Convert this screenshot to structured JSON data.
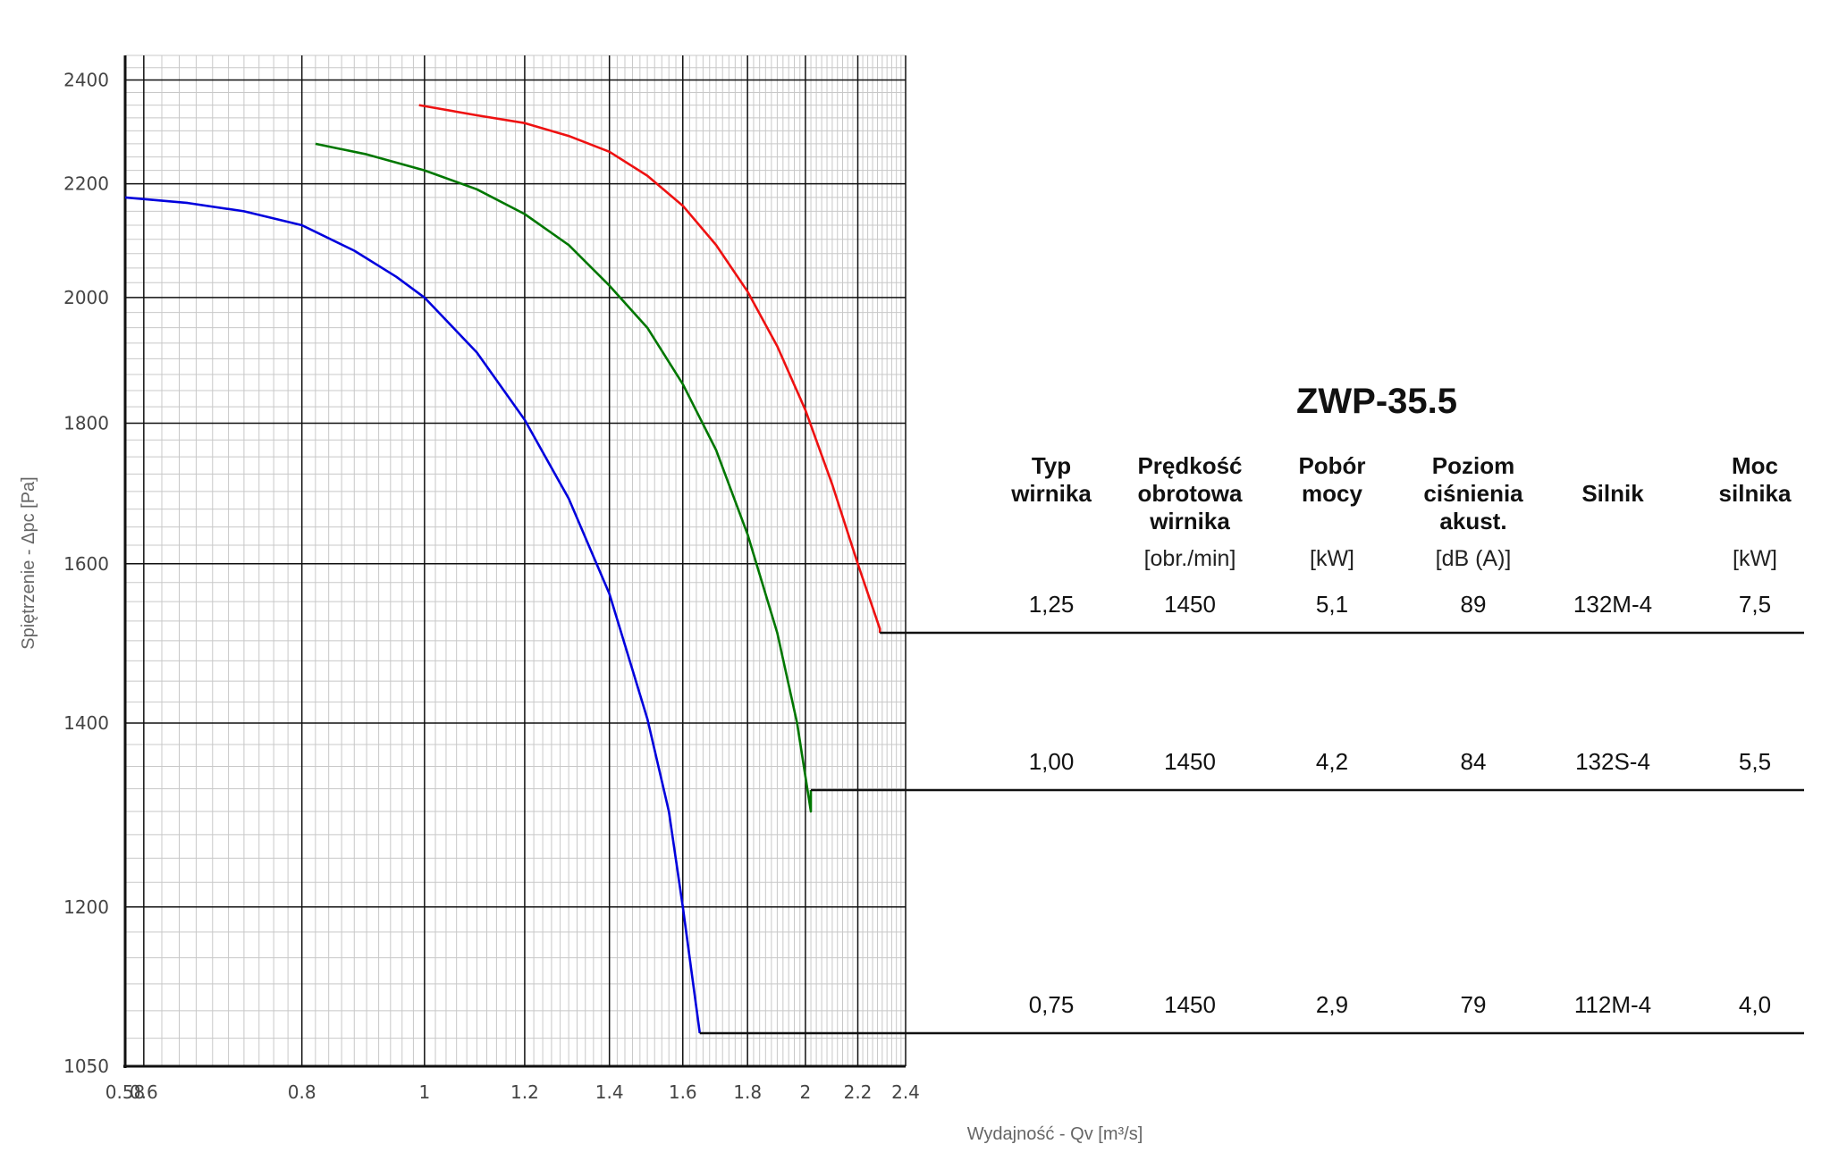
{
  "chart_data": {
    "type": "line",
    "title": "ZWP-35.5",
    "xlabel": "Wydajność - Qv [m³/s]",
    "ylabel": "Spiętrzenie - Δpc [Pa]",
    "x_scale": "log",
    "y_scale": "log",
    "xlim": [
      0.58,
      2.4
    ],
    "ylim": [
      1050,
      2450
    ],
    "grid": true,
    "x_ticks": [
      {
        "value": 0.58,
        "label": "0.58"
      },
      {
        "value": 0.6,
        "label": "0.6"
      },
      {
        "value": 0.8,
        "label": "0.8"
      },
      {
        "value": 1,
        "label": "1"
      },
      {
        "value": 1.2,
        "label": "1.2"
      },
      {
        "value": 1.4,
        "label": "1.4"
      },
      {
        "value": 1.6,
        "label": "1.6"
      },
      {
        "value": 1.8,
        "label": "1.8"
      },
      {
        "value": 2,
        "label": "2"
      },
      {
        "value": 2.2,
        "label": "2.2"
      },
      {
        "value": 2.4,
        "label": "2.4"
      }
    ],
    "y_ticks": [
      {
        "value": 1050,
        "label": "1050"
      },
      {
        "value": 1200,
        "label": "1200"
      },
      {
        "value": 1400,
        "label": "1400"
      },
      {
        "value": 1600,
        "label": "1600"
      },
      {
        "value": 1800,
        "label": "1800"
      },
      {
        "value": 2000,
        "label": "2000"
      },
      {
        "value": 2200,
        "label": "2200"
      },
      {
        "value": 2400,
        "label": "2400"
      }
    ],
    "series": [
      {
        "color": "#0000dd",
        "row": 2,
        "x": [
          0.58,
          0.65,
          0.72,
          0.8,
          0.88,
          0.95,
          1.0,
          1.1,
          1.2,
          1.3,
          1.4,
          1.5,
          1.56,
          1.6,
          1.65
        ],
        "y": [
          2175,
          2165,
          2150,
          2125,
          2080,
          2035,
          2000,
          1910,
          1805,
          1690,
          1560,
          1405,
          1300,
          1200,
          1080
        ]
      },
      {
        "color": "#007700",
        "row": 1,
        "x": [
          0.82,
          0.9,
          1.0,
          1.1,
          1.2,
          1.3,
          1.4,
          1.5,
          1.6,
          1.7,
          1.8,
          1.9,
          1.97,
          2.02
        ],
        "y": [
          2275,
          2255,
          2225,
          2190,
          2145,
          2090,
          2020,
          1950,
          1860,
          1760,
          1640,
          1510,
          1400,
          1300
        ]
      },
      {
        "color": "#ee1111",
        "row": 0,
        "x": [
          0.99,
          1.1,
          1.2,
          1.3,
          1.4,
          1.5,
          1.6,
          1.7,
          1.8,
          1.9,
          2.0,
          2.1,
          2.2,
          2.29
        ],
        "y": [
          2350,
          2330,
          2315,
          2290,
          2260,
          2215,
          2160,
          2090,
          2010,
          1920,
          1820,
          1710,
          1600,
          1515
        ]
      }
    ]
  },
  "table": {
    "title": "ZWP-35.5",
    "columns": [
      {
        "head": [
          "Typ",
          "wirnika"
        ],
        "unit": ""
      },
      {
        "head": [
          "Prędkość",
          "obrotowa",
          "wirnika"
        ],
        "unit": "[obr./min]"
      },
      {
        "head": [
          "Pobór",
          "mocy"
        ],
        "unit": "[kW]"
      },
      {
        "head": [
          "Poziom",
          "ciśnienia",
          "akust."
        ],
        "unit": "[dB (A)]"
      },
      {
        "head": [
          "Silnik"
        ],
        "unit": ""
      },
      {
        "head": [
          "Moc",
          "silnika"
        ],
        "unit": "[kW]"
      }
    ],
    "rows": [
      [
        "1,25",
        "1450",
        "5,1",
        "89",
        "132M-4",
        "7,5"
      ],
      [
        "1,00",
        "1450",
        "4,2",
        "84",
        "132S-4",
        "5,5"
      ],
      [
        "0,75",
        "1450",
        "2,9",
        "79",
        "112M-4",
        "4,0"
      ]
    ]
  }
}
